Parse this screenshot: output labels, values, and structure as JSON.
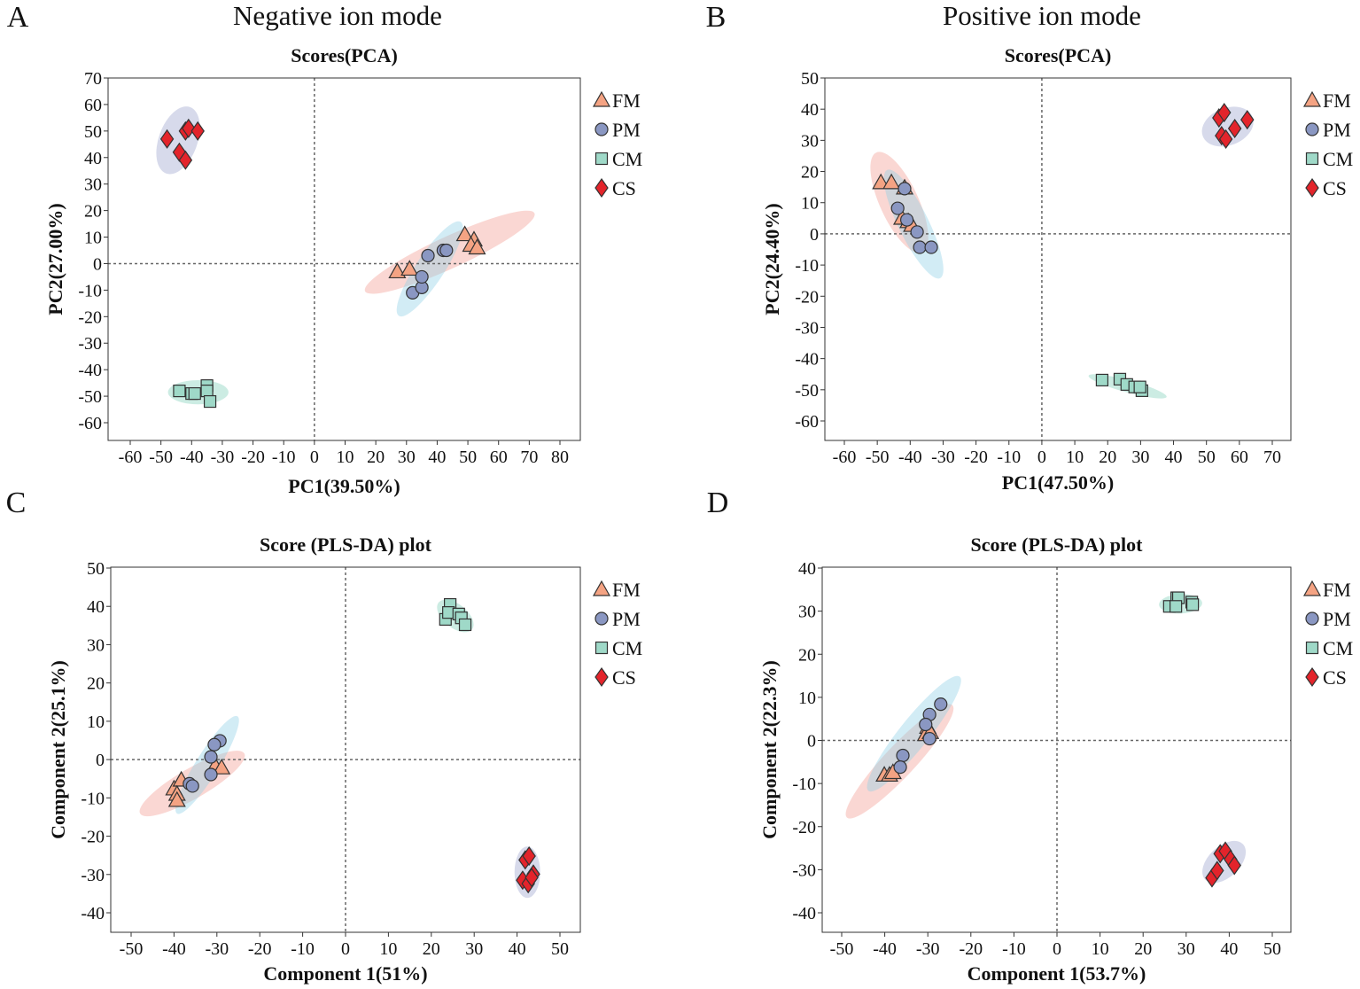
{
  "column_titles": [
    "Negative ion mode",
    "Positive ion mode"
  ],
  "styles": {
    "FM": {
      "marker": "triangle",
      "fill": "#f4a383",
      "ellipse": "#f29a90"
    },
    "PM": {
      "marker": "circle",
      "fill": "#8a97c2",
      "ellipse": "#8ed0e6"
    },
    "CM": {
      "marker": "square",
      "fill": "#9fd9c8",
      "ellipse": "#7fd0b8"
    },
    "CS": {
      "marker": "diamond",
      "fill": "#e3242b",
      "ellipse": "#9aa2cc"
    }
  },
  "chart_data": [
    {
      "panel": "A",
      "type": "scatter",
      "title": "Scores(PCA)",
      "xlabel": "PC1(39.50%)",
      "ylabel": "PC2(27.00%)",
      "xticks": [
        -60,
        -50,
        -40,
        -30,
        -20,
        -10,
        0,
        10,
        20,
        30,
        40,
        50,
        60,
        70,
        80
      ],
      "yticks": [
        70,
        60,
        50,
        40,
        30,
        20,
        10,
        0,
        -10,
        -20,
        -30,
        -40,
        -50,
        -60
      ],
      "legend": [
        "FM",
        "PM",
        "CM",
        "CS"
      ],
      "legend_position": "right",
      "series": [
        {
          "name": "FM",
          "points": [
            [
              27,
              -3
            ],
            [
              31,
              -2
            ],
            [
              49,
              11
            ],
            [
              52,
              9
            ],
            [
              51,
              7
            ],
            [
              53,
              6
            ]
          ],
          "ellipse": {
            "major": [
              [
                16.5,
                -10.4
              ],
              [
                71.7,
                19
              ]
            ],
            "minor_ratio": 0.17
          }
        },
        {
          "name": "PM",
          "points": [
            [
              32,
              -11
            ],
            [
              35,
              -9
            ],
            [
              35,
              -5
            ],
            [
              37,
              3
            ],
            [
              42,
              5
            ],
            [
              43,
              5
            ]
          ],
          "ellipse": {
            "major": [
              [
                27.5,
                -19.7
              ],
              [
                47.7,
                15.7
              ]
            ],
            "minor_ratio": 0.25
          }
        },
        {
          "name": "CM",
          "points": [
            [
              -44,
              -48
            ],
            [
              -40,
              -49
            ],
            [
              -39,
              -49
            ],
            [
              -35,
              -46
            ],
            [
              -35,
              -48
            ],
            [
              -34,
              -52
            ]
          ],
          "ellipse": {
            "major": [
              [
                -47.7,
                -48.5
              ],
              [
                -28,
                -48.5
              ]
            ],
            "minor_ratio": 0.4
          }
        },
        {
          "name": "CS",
          "points": [
            [
              -48,
              47
            ],
            [
              -44,
              42
            ],
            [
              -42,
              50
            ],
            [
              -41,
              51
            ],
            [
              -42,
              39
            ],
            [
              -38,
              50
            ]
          ],
          "ellipse": {
            "major": [
              [
                -40.5,
                59
              ],
              [
                -48.3,
                34
              ]
            ],
            "minor_ratio": 0.55
          }
        }
      ]
    },
    {
      "panel": "B",
      "type": "scatter",
      "title": "Scores(PCA)",
      "xlabel": "PC1(47.50%)",
      "ylabel": "PC2(24.40%)",
      "xticks": [
        -60,
        -50,
        -40,
        -30,
        -20,
        -10,
        0,
        10,
        20,
        30,
        40,
        50,
        60,
        70
      ],
      "yticks": [
        50,
        40,
        30,
        20,
        10,
        0,
        -10,
        -20,
        -30,
        -40,
        -50,
        -60
      ],
      "legend": [
        "FM",
        "PM",
        "CM",
        "CS"
      ],
      "legend_position": "right",
      "series": [
        {
          "name": "FM",
          "points": [
            [
              -48.9,
              16.5
            ],
            [
              -45.7,
              16.5
            ],
            [
              -41.7,
              14.8
            ],
            [
              -42.5,
              5.1
            ],
            [
              -40.6,
              4
            ],
            [
              -39.5,
              2.8
            ]
          ],
          "ellipse": {
            "major": [
              [
                -50.3,
                26.1
              ],
              [
                -36.3,
                -6
              ]
            ],
            "minor_ratio": 0.35
          }
        },
        {
          "name": "PM",
          "points": [
            [
              -41.7,
              14.5
            ],
            [
              -43.8,
              8.2
            ],
            [
              -41,
              4.5
            ],
            [
              -37.9,
              0.6
            ],
            [
              -37.1,
              -4.3
            ],
            [
              -33.6,
              -4.3
            ]
          ],
          "ellipse": {
            "major": [
              [
                -47,
                20.5
              ],
              [
                -30.9,
                -14.2
              ]
            ],
            "minor_ratio": 0.25
          }
        },
        {
          "name": "CM",
          "points": [
            [
              18.3,
              -46.9
            ],
            [
              23.7,
              -46.6
            ],
            [
              25.8,
              -48.3
            ],
            [
              28.2,
              -49.1
            ],
            [
              30.4,
              -50.3
            ],
            [
              29.8,
              -49.1
            ]
          ],
          "ellipse": {
            "major": [
              [
                14.2,
                -45.5
              ],
              [
                37.9,
                -52.3
              ]
            ],
            "minor_ratio": 0.15
          }
        },
        {
          "name": "CS",
          "points": [
            [
              53.8,
              37.2
            ],
            [
              55.4,
              38.9
            ],
            [
              54.6,
              31.5
            ],
            [
              55.9,
              30.4
            ],
            [
              58.6,
              33.8
            ],
            [
              62.4,
              36.6
            ]
          ],
          "ellipse": {
            "major": [
              [
                48.9,
                31.3
              ],
              [
                64,
                37.5
              ]
            ],
            "minor_ratio": 0.7
          }
        }
      ]
    },
    {
      "panel": "C",
      "type": "scatter",
      "title": "Score (PLS-DA) plot",
      "xlabel": "Component 1(51%)",
      "ylabel": "Component 2(25.1%)",
      "xticks": [
        -50,
        -40,
        -30,
        -20,
        -10,
        0,
        10,
        20,
        30,
        40,
        50
      ],
      "yticks": [
        50,
        40,
        30,
        20,
        10,
        0,
        -10,
        -20,
        -30,
        -40
      ],
      "legend": [
        "FM",
        "PM",
        "CM",
        "CS"
      ],
      "legend_position": "right",
      "series": [
        {
          "name": "FM",
          "points": [
            [
              -40,
              -7.6
            ],
            [
              -38.3,
              -5.3
            ],
            [
              -39.3,
              -9
            ],
            [
              -39.3,
              -10.6
            ],
            [
              -30.4,
              -1.6
            ],
            [
              -28.9,
              -2.1
            ]
          ],
          "ellipse": {
            "major": [
              [
                -47.9,
                -14.1
              ],
              [
                -23.6,
                1.6
              ]
            ],
            "minor_ratio": 0.25
          }
        },
        {
          "name": "PM",
          "points": [
            [
              -29.3,
              4.9
            ],
            [
              -30.6,
              3.9
            ],
            [
              -31.4,
              0.7
            ],
            [
              -31.4,
              -3.9
            ],
            [
              -36.4,
              -6.3
            ],
            [
              -35.7,
              -6.9
            ]
          ],
          "ellipse": {
            "major": [
              [
                -39.3,
                -14.1
              ],
              [
                -25.2,
                11.3
              ]
            ],
            "minor_ratio": 0.2
          }
        },
        {
          "name": "CM",
          "points": [
            [
              23.3,
              36.6
            ],
            [
              24.4,
              40.5
            ],
            [
              24,
              38.4
            ],
            [
              26.4,
              38
            ],
            [
              27,
              37
            ],
            [
              27.9,
              35.2
            ]
          ],
          "ellipse": {
            "major": [
              [
                21.7,
                41
              ],
              [
                29.5,
                34
              ]
            ],
            "minor_ratio": 0.55
          }
        },
        {
          "name": "CS",
          "points": [
            [
              41.9,
              -26.2
            ],
            [
              42.8,
              -25.2
            ],
            [
              41.3,
              -31.5
            ],
            [
              42.6,
              -32.4
            ],
            [
              43.8,
              -29.9
            ],
            [
              43.4,
              -30.8
            ]
          ],
          "ellipse": {
            "major": [
              [
                42.4,
                -22.7
              ],
              [
                42.4,
                -36.1
              ]
            ],
            "minor_ratio": 0.5
          }
        }
      ]
    },
    {
      "panel": "D",
      "type": "scatter",
      "title": "Score (PLS-DA) plot",
      "xlabel": "Component 1(53.7%)",
      "ylabel": "Component 2(22.3%)",
      "xticks": [
        -50,
        -40,
        -30,
        -20,
        -10,
        0,
        10,
        20,
        30,
        40,
        50
      ],
      "yticks": [
        40,
        30,
        20,
        10,
        0,
        -10,
        -20,
        -30,
        -40
      ],
      "legend": [
        "FM",
        "PM",
        "CM",
        "CS"
      ],
      "legend_position": "right",
      "series": [
        {
          "name": "FM",
          "points": [
            [
              -40.1,
              -8
            ],
            [
              -38.9,
              -8
            ],
            [
              -38.1,
              -7.4
            ],
            [
              -30,
              3.1
            ],
            [
              -30.5,
              1.4
            ],
            [
              -29.4,
              1.9
            ]
          ],
          "ellipse": {
            "major": [
              [
                -48.8,
                -17.9
              ],
              [
                -24.3,
                8.2
              ]
            ],
            "minor_ratio": 0.2
          }
        },
        {
          "name": "PM",
          "points": [
            [
              -27,
              8.4
            ],
            [
              -29.6,
              6
            ],
            [
              -30.5,
              3.7
            ],
            [
              -29.6,
              0.4
            ],
            [
              -35.8,
              -3.5
            ],
            [
              -36.4,
              -6.2
            ]
          ],
          "ellipse": {
            "major": [
              [
                -43.8,
                -11.7
              ],
              [
                -22.6,
                14.8
              ]
            ],
            "minor_ratio": 0.2
          }
        },
        {
          "name": "CM",
          "points": [
            [
              26.1,
              31.1
            ],
            [
              27.8,
              33.1
            ],
            [
              28.2,
              33.1
            ],
            [
              27.6,
              31.1
            ],
            [
              31.3,
              32.1
            ],
            [
              31.5,
              31.5
            ]
          ],
          "ellipse": {
            "major": [
              [
                23.7,
                31.5
              ],
              [
                33.7,
                31.9
              ]
            ],
            "minor_ratio": 0.45
          }
        },
        {
          "name": "CS",
          "points": [
            [
              36,
              -31.9
            ],
            [
              37.2,
              -30.2
            ],
            [
              37.9,
              -26.3
            ],
            [
              39.1,
              -25.7
            ],
            [
              40.3,
              -27.6
            ],
            [
              41.2,
              -29
            ]
          ],
          "ellipse": {
            "major": [
              [
                34.4,
                -32.3
              ],
              [
                43.2,
                -24.1
              ]
            ],
            "minor_ratio": 0.6
          }
        }
      ]
    }
  ]
}
